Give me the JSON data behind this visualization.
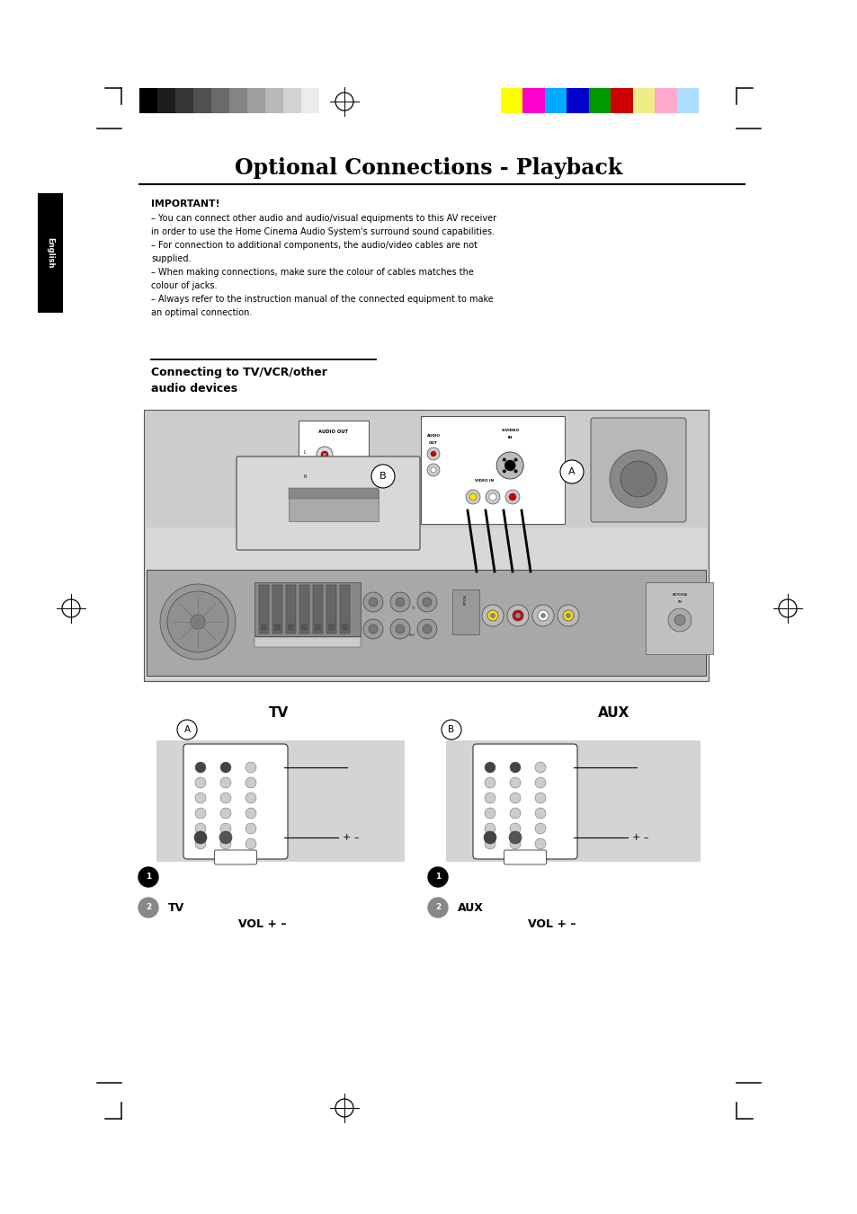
{
  "title": "Optional Connections - Playback",
  "bg_color": "#ffffff",
  "color_bar_left": [
    "#000000",
    "#1c1c1c",
    "#363636",
    "#505050",
    "#6a6a6a",
    "#848484",
    "#9e9e9e",
    "#b8b8b8",
    "#d2d2d2",
    "#ececec",
    "#ffffff"
  ],
  "color_bar_right": [
    "#ffff00",
    "#ff00cc",
    "#00aaff",
    "#0000cc",
    "#009900",
    "#cc0000",
    "#eeee88",
    "#ffaacc",
    "#aaddff"
  ],
  "important_title": "IMPORTANT!",
  "important_lines": [
    "– You can connect other audio and audio/visual equipments to this AV receiver",
    "in order to use the Home Cinema Audio System's surround sound capabilities.",
    "– For connection to additional components, the audio/video cables are not",
    "supplied.",
    "– When making connections, make sure the colour of cables matches the",
    "colour of jacks.",
    "– Always refer to the instruction manual of the connected equipment to make",
    "an optimal connection."
  ],
  "section_title_line1": "Connecting to TV/VCR/other",
  "section_title_line2": "audio devices",
  "tv_label": "TV",
  "aux_label": "AUX",
  "english_tab_text": "English",
  "gray_panel": "#d0d0d0",
  "black": "#000000",
  "white": "#ffffff"
}
